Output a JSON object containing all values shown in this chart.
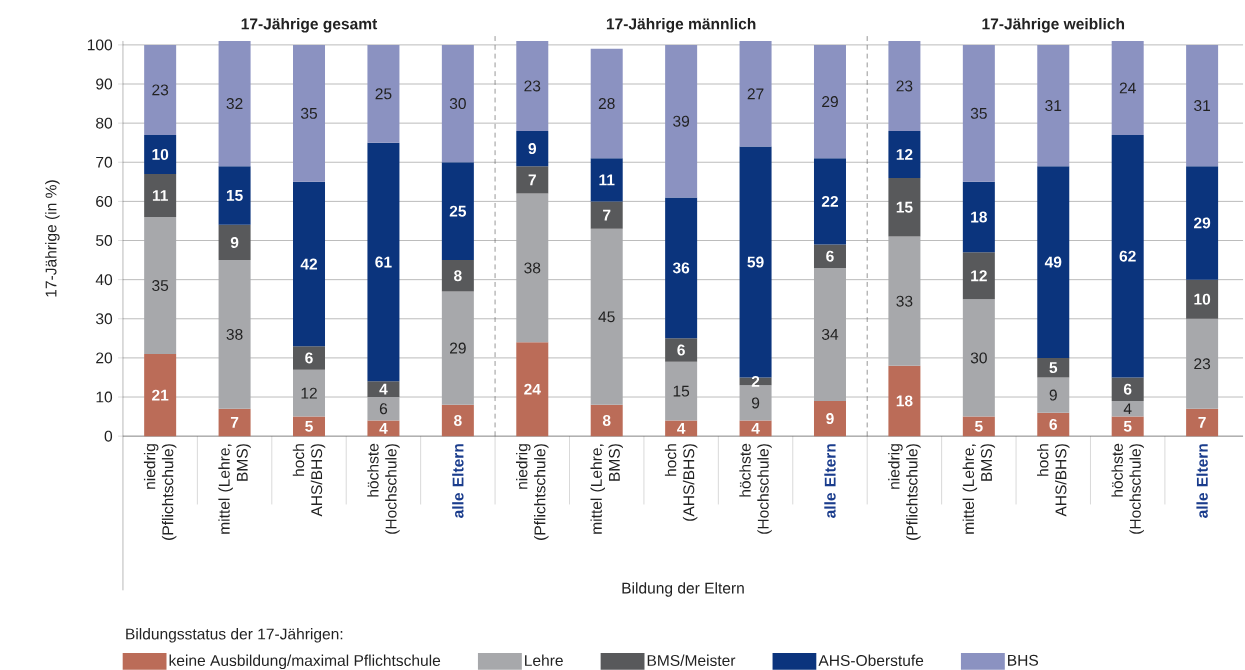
{
  "chart_data": {
    "type": "bar",
    "stacked": true,
    "annotations": [
      "17-Jährige gesamt",
      "17-Jährige männlich",
      "17-Jährige weiblich"
    ],
    "xlabel": "Bildung der Eltern",
    "ylabel": "17-Jährige (in %)",
    "legend_title": "Bildungsstatus der 17-Jährigen:",
    "categories": [
      "niedrig (Pflichtschule)",
      "mittel (Lehre, BMS)",
      "hoch AHS/BHS)",
      "höchste (Hochschule)",
      "alle Eltern",
      "niedrig (Pflichtschule)",
      "mittel (Lehre, BMS)",
      "hoch (AHS/BHS)",
      "höchste (Hochschule)",
      "alle Eltern",
      "niedrig (Pflichtschule)",
      "mittel (Lehre, BMS)",
      "hoch AHS/BHS)",
      "höchste (Hochschule)",
      "alle Eltern"
    ],
    "series": [
      {
        "name": "keine Ausbildung/maximal Pflichtschule",
        "color": "#bb6c58",
        "values": [
          21,
          7,
          5,
          4,
          8,
          24,
          8,
          4,
          4,
          9,
          18,
          5,
          6,
          5,
          7
        ]
      },
      {
        "name": "Lehre",
        "color": "#a7a8ab",
        "values": [
          35,
          38,
          12,
          6,
          29,
          38,
          45,
          15,
          9,
          34,
          33,
          30,
          9,
          4,
          23
        ]
      },
      {
        "name": "BMS/Meister",
        "color": "#58595b",
        "values": [
          11,
          9,
          6,
          4,
          8,
          7,
          7,
          6,
          2,
          6,
          15,
          12,
          5,
          6,
          10
        ]
      },
      {
        "name": "AHS-Oberstufe",
        "color": "#0b347d",
        "values": [
          10,
          15,
          42,
          61,
          25,
          9,
          11,
          36,
          59,
          22,
          12,
          18,
          49,
          62,
          29
        ]
      },
      {
        "name": "BHS",
        "color": "#8b92c1",
        "values": [
          23,
          32,
          35,
          25,
          30,
          23,
          28,
          39,
          27,
          29,
          23,
          35,
          31,
          24,
          31
        ]
      }
    ],
    "ylim": [
      0,
      101
    ],
    "yticks": [
      0,
      10,
      20,
      30,
      40,
      50,
      60,
      70,
      80,
      90,
      100
    ],
    "grid": "y",
    "legend": "bottom",
    "data_labels": true
  }
}
